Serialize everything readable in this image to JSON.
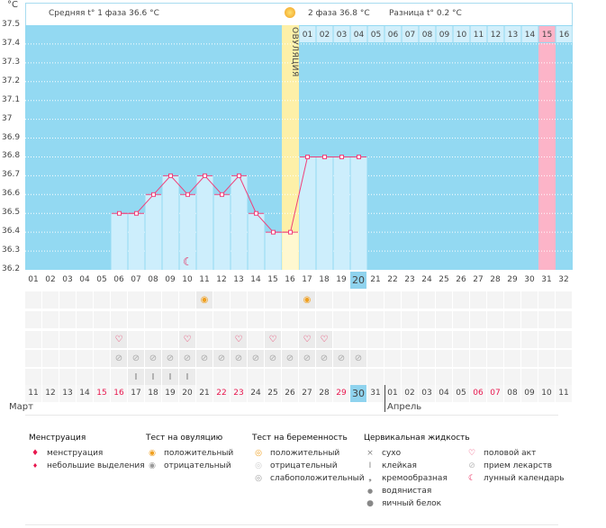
{
  "header": {
    "unit": "°C",
    "phase1": "Средняя t° 1 фаза 36.6 °C",
    "phase2": "2 фаза 36.8 °C",
    "diff": "Разница t° 0.2 °C",
    "ovulation_label": "ОВУЛЯЦИЯ"
  },
  "colors": {
    "sky": "#93d9f2",
    "bar": "#cdeefc",
    "ovulation": "#fdf0a8",
    "marked": "#fcb4c8",
    "line": "#f0407a",
    "today": "#8fd3ee",
    "weekend": "#e8174e"
  },
  "chart_data": {
    "type": "line",
    "ylim": [
      36.2,
      37.5
    ],
    "yticks": [
      "37.5",
      "37.4",
      "37.3",
      "37.2",
      "37.1",
      "37",
      "36.9",
      "36.8",
      "36.7",
      "36.6",
      "36.5",
      "36.4",
      "36.3",
      "36.2"
    ],
    "cycle_days": [
      "01",
      "02",
      "03",
      "04",
      "05",
      "06",
      "07",
      "08",
      "09",
      "10",
      "11",
      "12",
      "13",
      "14",
      "15",
      "16",
      "17",
      "18",
      "19",
      "20",
      "21",
      "22",
      "23",
      "24",
      "25",
      "26",
      "27",
      "28",
      "29",
      "30",
      "31",
      "32"
    ],
    "x": [
      6,
      7,
      8,
      9,
      10,
      11,
      12,
      13,
      14,
      15,
      16,
      17,
      18,
      19,
      20
    ],
    "values": [
      36.5,
      36.5,
      36.6,
      36.7,
      36.6,
      36.7,
      36.6,
      36.7,
      36.5,
      36.4,
      36.4,
      36.8,
      36.8,
      36.8,
      36.8
    ],
    "ovulation_day": 16,
    "current_day": 20,
    "marked_day": 31,
    "moon_day": 10,
    "phase2_days": [
      "01",
      "02",
      "03",
      "04",
      "05",
      "06",
      "07",
      "08",
      "09",
      "10",
      "11",
      "12",
      "13",
      "14",
      "15",
      "16"
    ]
  },
  "rows": {
    "ovulation_test_positive": [
      11,
      17
    ],
    "intercourse": [
      6,
      10,
      13,
      15,
      17,
      18
    ],
    "medication": [
      6,
      7,
      8,
      9,
      10,
      11,
      12,
      13,
      14,
      15,
      16,
      17,
      18,
      19,
      20
    ],
    "cervical_sticky": [
      7,
      8,
      9,
      10
    ]
  },
  "dates": [
    "11",
    "12",
    "13",
    "14",
    "15",
    "16",
    "17",
    "18",
    "19",
    "20",
    "21",
    "22",
    "23",
    "24",
    "25",
    "26",
    "27",
    "28",
    "29",
    "30",
    "31",
    "01",
    "02",
    "03",
    "04",
    "05",
    "06",
    "07",
    "08",
    "09",
    "10",
    "11"
  ],
  "weekend_idx": [
    4,
    5,
    11,
    12,
    18,
    26,
    27
  ],
  "months": {
    "m1": "Март",
    "m2": "Апрель"
  },
  "legend": {
    "menstruation": {
      "title": "Менструация",
      "items": [
        "менструация",
        "небольшие выделения"
      ]
    },
    "ovulation_test": {
      "title": "Тест на овуляцию",
      "items": [
        "положительный",
        "отрицательный"
      ]
    },
    "pregnancy_test": {
      "title": "Тест на беременность",
      "items": [
        "положительный",
        "отрицательный",
        "слабоположительный"
      ]
    },
    "cervical": {
      "title": "Цервикальная жидкость",
      "items": [
        "сухо",
        "клейкая",
        "кремообразная",
        "водянистая",
        "яичный белок"
      ]
    },
    "other": {
      "items": [
        "половой акт",
        "прием лекарств",
        "лунный календарь"
      ]
    }
  }
}
